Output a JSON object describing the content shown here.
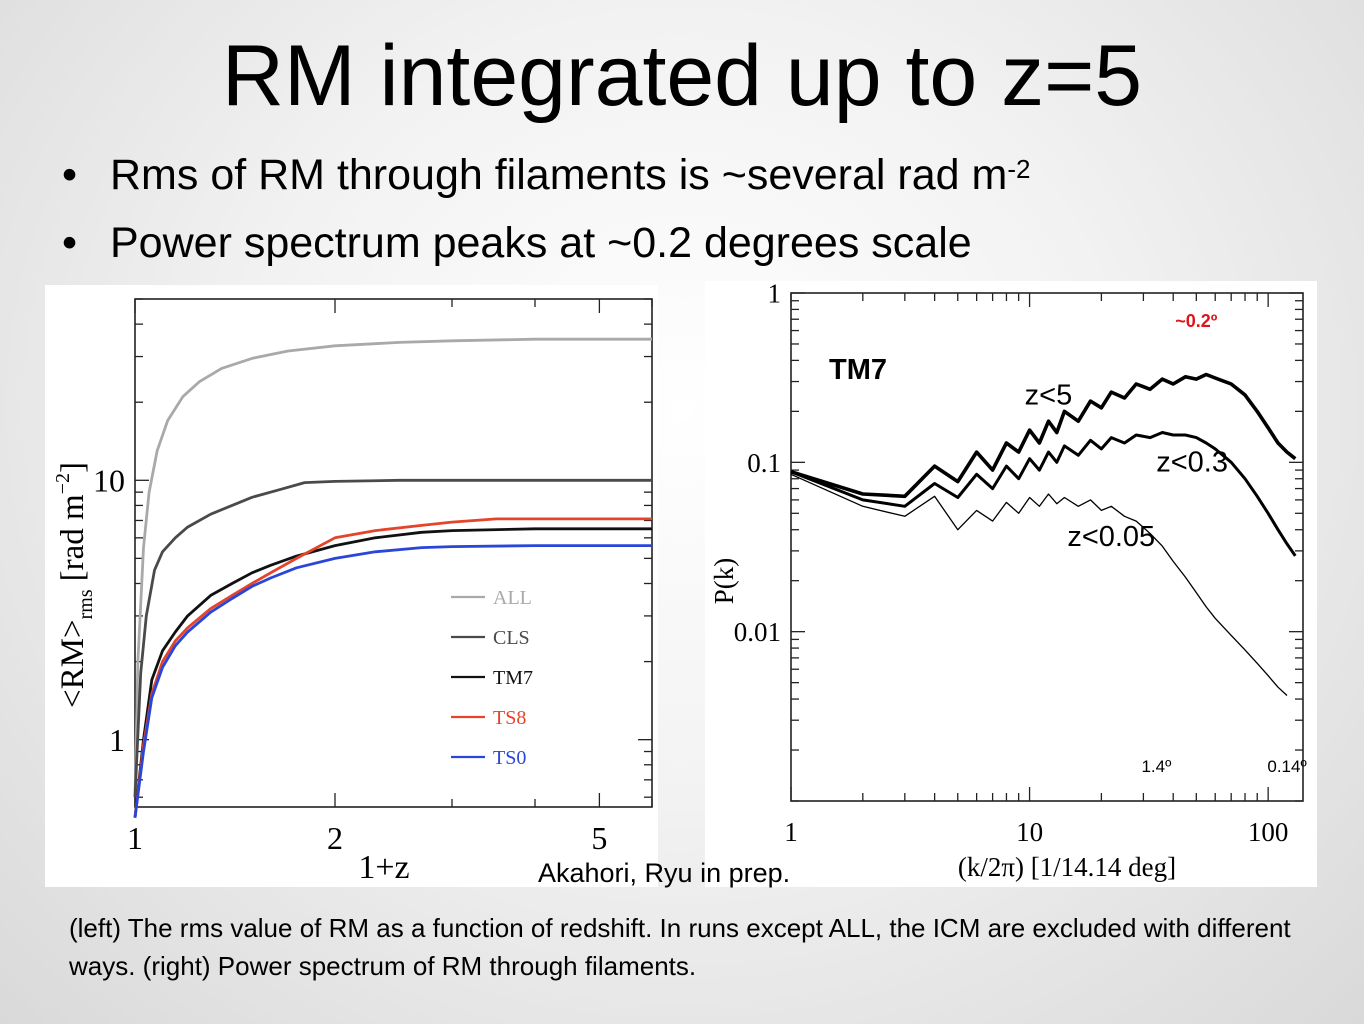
{
  "slide": {
    "title": "RM integrated up to z=5",
    "bullets": [
      {
        "text": "Rms of RM through filaments is ~several rad m",
        "sup": "-2"
      },
      {
        "text": "Power spectrum peaks at ~0.2 degrees scale",
        "sup": ""
      }
    ],
    "bullet_symbol": "•",
    "credit": "Akahori, Ryu in prep.",
    "caption": "(left) The rms value of RM as a function of redshift. In runs except ALL, the ICM are excluded with different ways. (right) Power spectrum of RM through filaments."
  },
  "chart_data": [
    {
      "type": "line",
      "xlabel": "1+z",
      "ylabel": "<RM>rms [rad m⁻²]",
      "ylabel_parts": {
        "main": "<RM>",
        "sub": "rms",
        "unit": "[rad m",
        "unit_sup": "−2",
        "unit_end": "]"
      },
      "x_scale": "log",
      "y_scale": "log",
      "xlim": [
        1,
        6
      ],
      "ylim": [
        0.55,
        50
      ],
      "x_ticks": [
        {
          "v": 1,
          "label": "1"
        },
        {
          "v": 2,
          "label": "2"
        },
        {
          "v": 5,
          "label": "5"
        }
      ],
      "y_ticks": [
        {
          "v": 1,
          "label": "1"
        },
        {
          "v": 10,
          "label": "10"
        }
      ],
      "legend_position": "bottom-right",
      "series": [
        {
          "name": "ALL",
          "color": "#a9a9a9",
          "x": [
            1.0,
            1.01,
            1.03,
            1.05,
            1.08,
            1.12,
            1.18,
            1.25,
            1.35,
            1.5,
            1.7,
            2.0,
            2.5,
            3.0,
            4.0,
            5.0,
            6.0
          ],
          "y": [
            0.6,
            2.0,
            5.5,
            9.0,
            13.0,
            17.0,
            21.0,
            24.0,
            27.0,
            29.5,
            31.5,
            33.0,
            34.0,
            34.5,
            35.0,
            35.0,
            35.0
          ]
        },
        {
          "name": "CLS",
          "color": "#4a4a4a",
          "x": [
            1.0,
            1.02,
            1.04,
            1.07,
            1.1,
            1.15,
            1.2,
            1.3,
            1.4,
            1.5,
            1.65,
            1.8,
            2.0,
            2.5,
            3.0,
            4.0,
            5.0,
            6.0
          ],
          "y": [
            0.6,
            1.8,
            3.0,
            4.5,
            5.3,
            6.0,
            6.6,
            7.4,
            8.0,
            8.6,
            9.2,
            9.8,
            9.9,
            10.0,
            10.0,
            10.0,
            10.0,
            10.0
          ]
        },
        {
          "name": "TM7",
          "color": "#111111",
          "x": [
            1.0,
            1.03,
            1.06,
            1.1,
            1.15,
            1.2,
            1.3,
            1.4,
            1.5,
            1.6,
            1.75,
            2.0,
            2.3,
            2.7,
            3.0,
            4.0,
            5.0,
            6.0
          ],
          "y": [
            0.5,
            1.0,
            1.7,
            2.2,
            2.6,
            3.0,
            3.6,
            4.0,
            4.4,
            4.7,
            5.1,
            5.6,
            6.0,
            6.3,
            6.4,
            6.5,
            6.5,
            6.5
          ]
        },
        {
          "name": "TS8",
          "color": "#e4452a",
          "x": [
            1.0,
            1.03,
            1.06,
            1.1,
            1.15,
            1.2,
            1.3,
            1.4,
            1.5,
            1.6,
            1.75,
            2.0,
            2.3,
            2.7,
            3.0,
            3.5,
            4.0,
            5.0,
            6.0
          ],
          "y": [
            0.5,
            0.95,
            1.5,
            2.0,
            2.4,
            2.7,
            3.2,
            3.6,
            4.0,
            4.4,
            5.0,
            6.0,
            6.4,
            6.7,
            6.9,
            7.1,
            7.1,
            7.1,
            7.1
          ]
        },
        {
          "name": "TS0",
          "color": "#2946d9",
          "x": [
            1.0,
            1.03,
            1.06,
            1.1,
            1.15,
            1.2,
            1.3,
            1.4,
            1.5,
            1.6,
            1.75,
            2.0,
            2.3,
            2.7,
            3.0,
            4.0,
            5.0,
            6.0
          ],
          "y": [
            0.5,
            0.9,
            1.45,
            1.9,
            2.3,
            2.6,
            3.1,
            3.5,
            3.9,
            4.2,
            4.6,
            5.0,
            5.3,
            5.5,
            5.55,
            5.6,
            5.6,
            5.6
          ]
        }
      ]
    },
    {
      "type": "line",
      "xlabel": "(k/2π) [1/14.14 deg]",
      "ylabel": "P(k)",
      "x_scale": "log",
      "y_scale": "log",
      "xlim": [
        1,
        140
      ],
      "ylim": [
        0.001,
        1
      ],
      "x_ticks": [
        {
          "v": 1,
          "label": "1"
        },
        {
          "v": 10,
          "label": "10"
        },
        {
          "v": 100,
          "label": "100"
        }
      ],
      "y_ticks": [
        {
          "v": 0.01,
          "label": "0.01"
        },
        {
          "v": 0.1,
          "label": "0.1"
        },
        {
          "v": 1,
          "label": "1"
        }
      ],
      "model_label": "TM7",
      "annotations": [
        {
          "text": "~0.2º",
          "x": 50,
          "y": 0.63,
          "color": "#e0151b"
        },
        {
          "text": "1.4º",
          "x": 34,
          "y": 0.00148,
          "color": "#000000"
        },
        {
          "text": "0.14º",
          "x": 120,
          "y": 0.00148,
          "color": "#000000"
        }
      ],
      "series": [
        {
          "name": "z<5",
          "label_at": {
            "x": 12,
            "y": 0.22
          },
          "stroke": 3.6,
          "x": [
            1,
            2,
            3,
            4,
            5,
            6,
            7,
            8,
            9,
            10,
            11,
            12,
            13,
            14,
            16,
            18,
            20,
            22,
            25,
            28,
            32,
            36,
            40,
            45,
            50,
            55,
            60,
            70,
            80,
            90,
            100,
            110,
            120,
            130
          ],
          "y": [
            0.088,
            0.065,
            0.063,
            0.095,
            0.077,
            0.115,
            0.09,
            0.13,
            0.115,
            0.155,
            0.13,
            0.175,
            0.15,
            0.2,
            0.175,
            0.23,
            0.21,
            0.26,
            0.24,
            0.29,
            0.27,
            0.31,
            0.29,
            0.32,
            0.31,
            0.33,
            0.315,
            0.29,
            0.25,
            0.2,
            0.16,
            0.13,
            0.115,
            0.105
          ]
        },
        {
          "name": "z<0.3",
          "label_at": {
            "x": 48,
            "y": 0.088
          },
          "stroke": 3.0,
          "x": [
            1,
            2,
            3,
            4,
            5,
            6,
            7,
            8,
            9,
            10,
            11,
            12,
            13,
            14,
            16,
            18,
            20,
            22,
            25,
            28,
            32,
            36,
            40,
            45,
            50,
            55,
            60,
            70,
            80,
            90,
            100,
            110,
            120,
            130
          ],
          "y": [
            0.088,
            0.06,
            0.055,
            0.075,
            0.062,
            0.085,
            0.07,
            0.095,
            0.08,
            0.105,
            0.09,
            0.115,
            0.1,
            0.125,
            0.11,
            0.135,
            0.12,
            0.14,
            0.13,
            0.145,
            0.14,
            0.15,
            0.145,
            0.145,
            0.14,
            0.13,
            0.12,
            0.1,
            0.08,
            0.063,
            0.05,
            0.04,
            0.033,
            0.028
          ]
        },
        {
          "name": "z<0.05",
          "label_at": {
            "x": 22,
            "y": 0.032
          },
          "stroke": 1.3,
          "x": [
            1,
            2,
            3,
            4,
            5,
            6,
            7,
            8,
            9,
            10,
            11,
            12,
            13,
            14,
            16,
            18,
            20,
            22,
            25,
            28,
            32,
            36,
            40,
            45,
            50,
            55,
            60,
            70,
            80,
            90,
            100,
            110,
            120
          ],
          "y": [
            0.085,
            0.055,
            0.048,
            0.063,
            0.04,
            0.052,
            0.045,
            0.058,
            0.05,
            0.062,
            0.055,
            0.065,
            0.057,
            0.062,
            0.055,
            0.06,
            0.052,
            0.055,
            0.048,
            0.045,
            0.038,
            0.032,
            0.026,
            0.021,
            0.017,
            0.014,
            0.012,
            0.0095,
            0.0078,
            0.0065,
            0.0055,
            0.0047,
            0.0042
          ]
        }
      ]
    }
  ]
}
